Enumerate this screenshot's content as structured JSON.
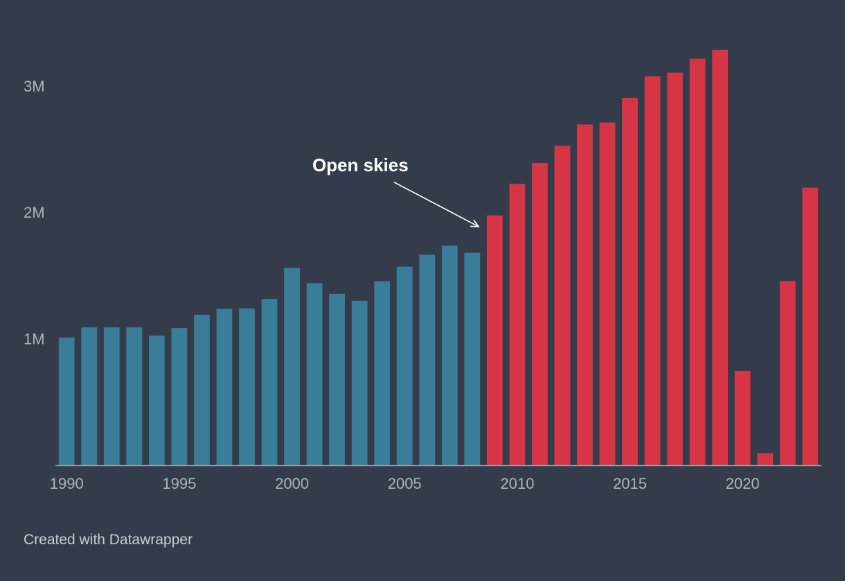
{
  "chart_data": {
    "type": "bar",
    "x": [
      1990,
      1991,
      1992,
      1993,
      1994,
      1995,
      1996,
      1997,
      1998,
      1999,
      2000,
      2001,
      2002,
      2003,
      2004,
      2005,
      2006,
      2007,
      2008,
      2009,
      2010,
      2011,
      2012,
      2013,
      2014,
      2015,
      2016,
      2017,
      2018,
      2019,
      2020,
      2021,
      2022,
      2023
    ],
    "values": [
      1010000,
      1090000,
      1090000,
      1090000,
      1025000,
      1085000,
      1190000,
      1235000,
      1240000,
      1315000,
      1560000,
      1440000,
      1355000,
      1300000,
      1455000,
      1570000,
      1665000,
      1735000,
      1680000,
      1975000,
      2225000,
      2390000,
      2525000,
      2695000,
      2710000,
      2905000,
      3075000,
      3105000,
      3215000,
      3285000,
      745000,
      95000,
      1455000,
      2195000
    ],
    "colors": [
      "#3a7d99",
      "#3a7d99",
      "#3a7d99",
      "#3a7d99",
      "#3a7d99",
      "#3a7d99",
      "#3a7d99",
      "#3a7d99",
      "#3a7d99",
      "#3a7d99",
      "#3a7d99",
      "#3a7d99",
      "#3a7d99",
      "#3a7d99",
      "#3a7d99",
      "#3a7d99",
      "#3a7d99",
      "#3a7d99",
      "#3a7d99",
      "#d63545",
      "#d63545",
      "#d63545",
      "#d63545",
      "#d63545",
      "#d63545",
      "#d63545",
      "#d63545",
      "#d63545",
      "#d63545",
      "#d63545",
      "#d63545",
      "#d63545",
      "#d63545",
      "#d63545"
    ],
    "x_ticks": [
      {
        "value": 1990,
        "label": "1990"
      },
      {
        "value": 1995,
        "label": "1995"
      },
      {
        "value": 2000,
        "label": "2000"
      },
      {
        "value": 2005,
        "label": "2005"
      },
      {
        "value": 2010,
        "label": "2010"
      },
      {
        "value": 2015,
        "label": "2015"
      },
      {
        "value": 2020,
        "label": "2020"
      }
    ],
    "y_ticks": [
      {
        "value": 1000000,
        "label": "1M"
      },
      {
        "value": 2000000,
        "label": "2M"
      },
      {
        "value": 3000000,
        "label": "3M"
      }
    ],
    "ylim": [
      0,
      3350000
    ],
    "grid": false,
    "annotation": {
      "text": "Open skies",
      "target_x": 2009
    }
  },
  "footer": {
    "credit": "Created with Datawrapper"
  }
}
